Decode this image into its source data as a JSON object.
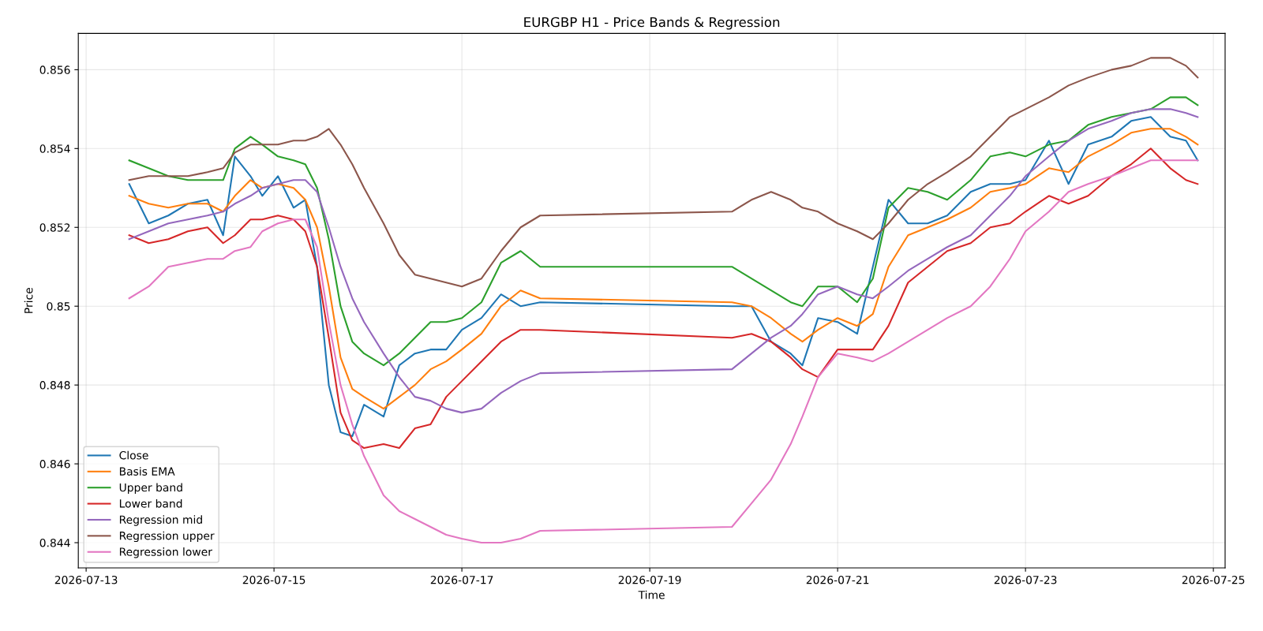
{
  "chart_data": {
    "type": "line",
    "title": "EURGBP H1 - Price Bands & Regression",
    "xlabel": "Time",
    "ylabel": "Price",
    "x": [
      "2026-07-13T11:00",
      "2026-07-13T16:00",
      "2026-07-13T21:00",
      "2026-07-14T02:00",
      "2026-07-14T07:00",
      "2026-07-14T11:00",
      "2026-07-14T14:00",
      "2026-07-14T18:00",
      "2026-07-14T21:00",
      "2026-07-15T01:00",
      "2026-07-15T05:00",
      "2026-07-15T08:00",
      "2026-07-15T11:00",
      "2026-07-15T14:00",
      "2026-07-15T17:00",
      "2026-07-15T20:00",
      "2026-07-15T23:00",
      "2026-07-16T04:00",
      "2026-07-16T08:00",
      "2026-07-16T12:00",
      "2026-07-16T16:00",
      "2026-07-16T20:00",
      "2026-07-17T00:00",
      "2026-07-17T05:00",
      "2026-07-17T10:00",
      "2026-07-17T15:00",
      "2026-07-17T20:00",
      "2026-07-19T21:00",
      "2026-07-20T02:00",
      "2026-07-20T07:00",
      "2026-07-20T12:00",
      "2026-07-20T15:00",
      "2026-07-20T19:00",
      "2026-07-21T00:00",
      "2026-07-21T05:00",
      "2026-07-21T09:00",
      "2026-07-21T13:00",
      "2026-07-21T18:00",
      "2026-07-21T23:00",
      "2026-07-22T04:00",
      "2026-07-22T10:00",
      "2026-07-22T15:00",
      "2026-07-22T20:00",
      "2026-07-23T00:00",
      "2026-07-23T06:00",
      "2026-07-23T11:00",
      "2026-07-23T16:00",
      "2026-07-23T22:00",
      "2026-07-24T03:00",
      "2026-07-24T08:00",
      "2026-07-24T13:00",
      "2026-07-24T17:00",
      "2026-07-24T20:00"
    ],
    "series": [
      {
        "name": "Close",
        "color": "#1f77b4",
        "values": [
          0.8531,
          0.8521,
          0.8523,
          0.8526,
          0.8527,
          0.8518,
          0.8538,
          0.8533,
          0.8528,
          0.8533,
          0.8525,
          0.8527,
          0.851,
          0.848,
          0.8468,
          0.8467,
          0.8475,
          0.8472,
          0.8485,
          0.8488,
          0.8489,
          0.8489,
          0.8494,
          0.8497,
          0.8503,
          0.85,
          0.8501,
          0.85,
          0.85,
          0.8491,
          0.8488,
          0.8485,
          0.8497,
          0.8496,
          0.8493,
          0.851,
          0.8527,
          0.8521,
          0.8521,
          0.8523,
          0.8529,
          0.8531,
          0.8531,
          0.8532,
          0.8542,
          0.8531,
          0.8541,
          0.8543,
          0.8547,
          0.8548,
          0.8543,
          0.8542,
          0.8537
        ]
      },
      {
        "name": "Basis EMA",
        "color": "#ff7f0e",
        "values": [
          0.8528,
          0.8526,
          0.8525,
          0.8526,
          0.8526,
          0.8524,
          0.8528,
          0.8532,
          0.853,
          0.8531,
          0.853,
          0.8527,
          0.852,
          0.8505,
          0.8487,
          0.8479,
          0.8477,
          0.8474,
          0.8477,
          0.848,
          0.8484,
          0.8486,
          0.8489,
          0.8493,
          0.85,
          0.8504,
          0.8502,
          0.8501,
          0.85,
          0.8497,
          0.8493,
          0.8491,
          0.8494,
          0.8497,
          0.8495,
          0.8498,
          0.851,
          0.8518,
          0.852,
          0.8522,
          0.8525,
          0.8529,
          0.853,
          0.8531,
          0.8535,
          0.8534,
          0.8538,
          0.8541,
          0.8544,
          0.8545,
          0.8545,
          0.8543,
          0.8541
        ]
      },
      {
        "name": "Upper band",
        "color": "#2ca02c",
        "values": [
          0.8537,
          0.8535,
          0.8533,
          0.8532,
          0.8532,
          0.8532,
          0.854,
          0.8543,
          0.8541,
          0.8538,
          0.8537,
          0.8536,
          0.853,
          0.8517,
          0.85,
          0.8491,
          0.8488,
          0.8485,
          0.8488,
          0.8492,
          0.8496,
          0.8496,
          0.8497,
          0.8501,
          0.8511,
          0.8514,
          0.851,
          0.851,
          0.8507,
          0.8504,
          0.8501,
          0.85,
          0.8505,
          0.8505,
          0.8501,
          0.8507,
          0.8525,
          0.853,
          0.8529,
          0.8527,
          0.8532,
          0.8538,
          0.8539,
          0.8538,
          0.8541,
          0.8542,
          0.8546,
          0.8548,
          0.8549,
          0.855,
          0.8553,
          0.8553,
          0.8551
        ]
      },
      {
        "name": "Lower band",
        "color": "#d62728",
        "values": [
          0.8518,
          0.8516,
          0.8517,
          0.8519,
          0.852,
          0.8516,
          0.8518,
          0.8522,
          0.8522,
          0.8523,
          0.8522,
          0.8519,
          0.851,
          0.8492,
          0.8473,
          0.8466,
          0.8464,
          0.8465,
          0.8464,
          0.8469,
          0.847,
          0.8477,
          0.8481,
          0.8486,
          0.8491,
          0.8494,
          0.8494,
          0.8492,
          0.8493,
          0.8491,
          0.8487,
          0.8484,
          0.8482,
          0.8489,
          0.8489,
          0.8489,
          0.8495,
          0.8506,
          0.851,
          0.8514,
          0.8516,
          0.852,
          0.8521,
          0.8524,
          0.8528,
          0.8526,
          0.8528,
          0.8533,
          0.8536,
          0.854,
          0.8535,
          0.8532,
          0.8531
        ]
      },
      {
        "name": "Regression mid",
        "color": "#9467bd",
        "values": [
          0.8517,
          0.8519,
          0.8521,
          0.8522,
          0.8523,
          0.8524,
          0.8526,
          0.8528,
          0.853,
          0.8531,
          0.8532,
          0.8532,
          0.8529,
          0.852,
          0.851,
          0.8502,
          0.8496,
          0.8488,
          0.8482,
          0.8477,
          0.8476,
          0.8474,
          0.8473,
          0.8474,
          0.8478,
          0.8481,
          0.8483,
          0.8484,
          0.8488,
          0.8492,
          0.8495,
          0.8498,
          0.8503,
          0.8505,
          0.8503,
          0.8502,
          0.8505,
          0.8509,
          0.8512,
          0.8515,
          0.8518,
          0.8523,
          0.8528,
          0.8533,
          0.8538,
          0.8542,
          0.8545,
          0.8547,
          0.8549,
          0.855,
          0.855,
          0.8549,
          0.8548
        ]
      },
      {
        "name": "Regression upper",
        "color": "#8c564b",
        "values": [
          0.8532,
          0.8533,
          0.8533,
          0.8533,
          0.8534,
          0.8535,
          0.8539,
          0.8541,
          0.8541,
          0.8541,
          0.8542,
          0.8542,
          0.8543,
          0.8545,
          0.8541,
          0.8536,
          0.853,
          0.8521,
          0.8513,
          0.8508,
          0.8507,
          0.8506,
          0.8505,
          0.8507,
          0.8514,
          0.852,
          0.8523,
          0.8524,
          0.8527,
          0.8529,
          0.8527,
          0.8525,
          0.8524,
          0.8521,
          0.8519,
          0.8517,
          0.8521,
          0.8527,
          0.8531,
          0.8534,
          0.8538,
          0.8543,
          0.8548,
          0.855,
          0.8553,
          0.8556,
          0.8558,
          0.856,
          0.8561,
          0.8563,
          0.8563,
          0.8561,
          0.8558
        ]
      },
      {
        "name": "Regression lower",
        "color": "#e377c2",
        "values": [
          0.8502,
          0.8505,
          0.851,
          0.8511,
          0.8512,
          0.8512,
          0.8514,
          0.8515,
          0.8519,
          0.8521,
          0.8522,
          0.8522,
          0.8515,
          0.8496,
          0.848,
          0.847,
          0.8462,
          0.8452,
          0.8448,
          0.8446,
          0.8444,
          0.8442,
          0.8441,
          0.844,
          0.844,
          0.8441,
          0.8443,
          0.8444,
          0.845,
          0.8456,
          0.8465,
          0.8472,
          0.8482,
          0.8488,
          0.8487,
          0.8486,
          0.8488,
          0.8491,
          0.8494,
          0.8497,
          0.85,
          0.8505,
          0.8512,
          0.8519,
          0.8524,
          0.8529,
          0.8531,
          0.8533,
          0.8535,
          0.8537,
          0.8537,
          0.8537,
          0.8537
        ]
      }
    ],
    "xlim": [
      "2026-07-12T22:00",
      "2026-07-25T03:00"
    ],
    "xticks": [
      "2026-07-13",
      "2026-07-15",
      "2026-07-17",
      "2026-07-19",
      "2026-07-21",
      "2026-07-23",
      "2026-07-25"
    ],
    "ylim": [
      0.84336,
      0.85692
    ],
    "yticks": [
      0.844,
      0.846,
      0.848,
      0.85,
      0.852,
      0.854,
      0.856
    ],
    "grid": true,
    "legend": "bottom left",
    "marker": "none",
    "line_style": "solid"
  }
}
